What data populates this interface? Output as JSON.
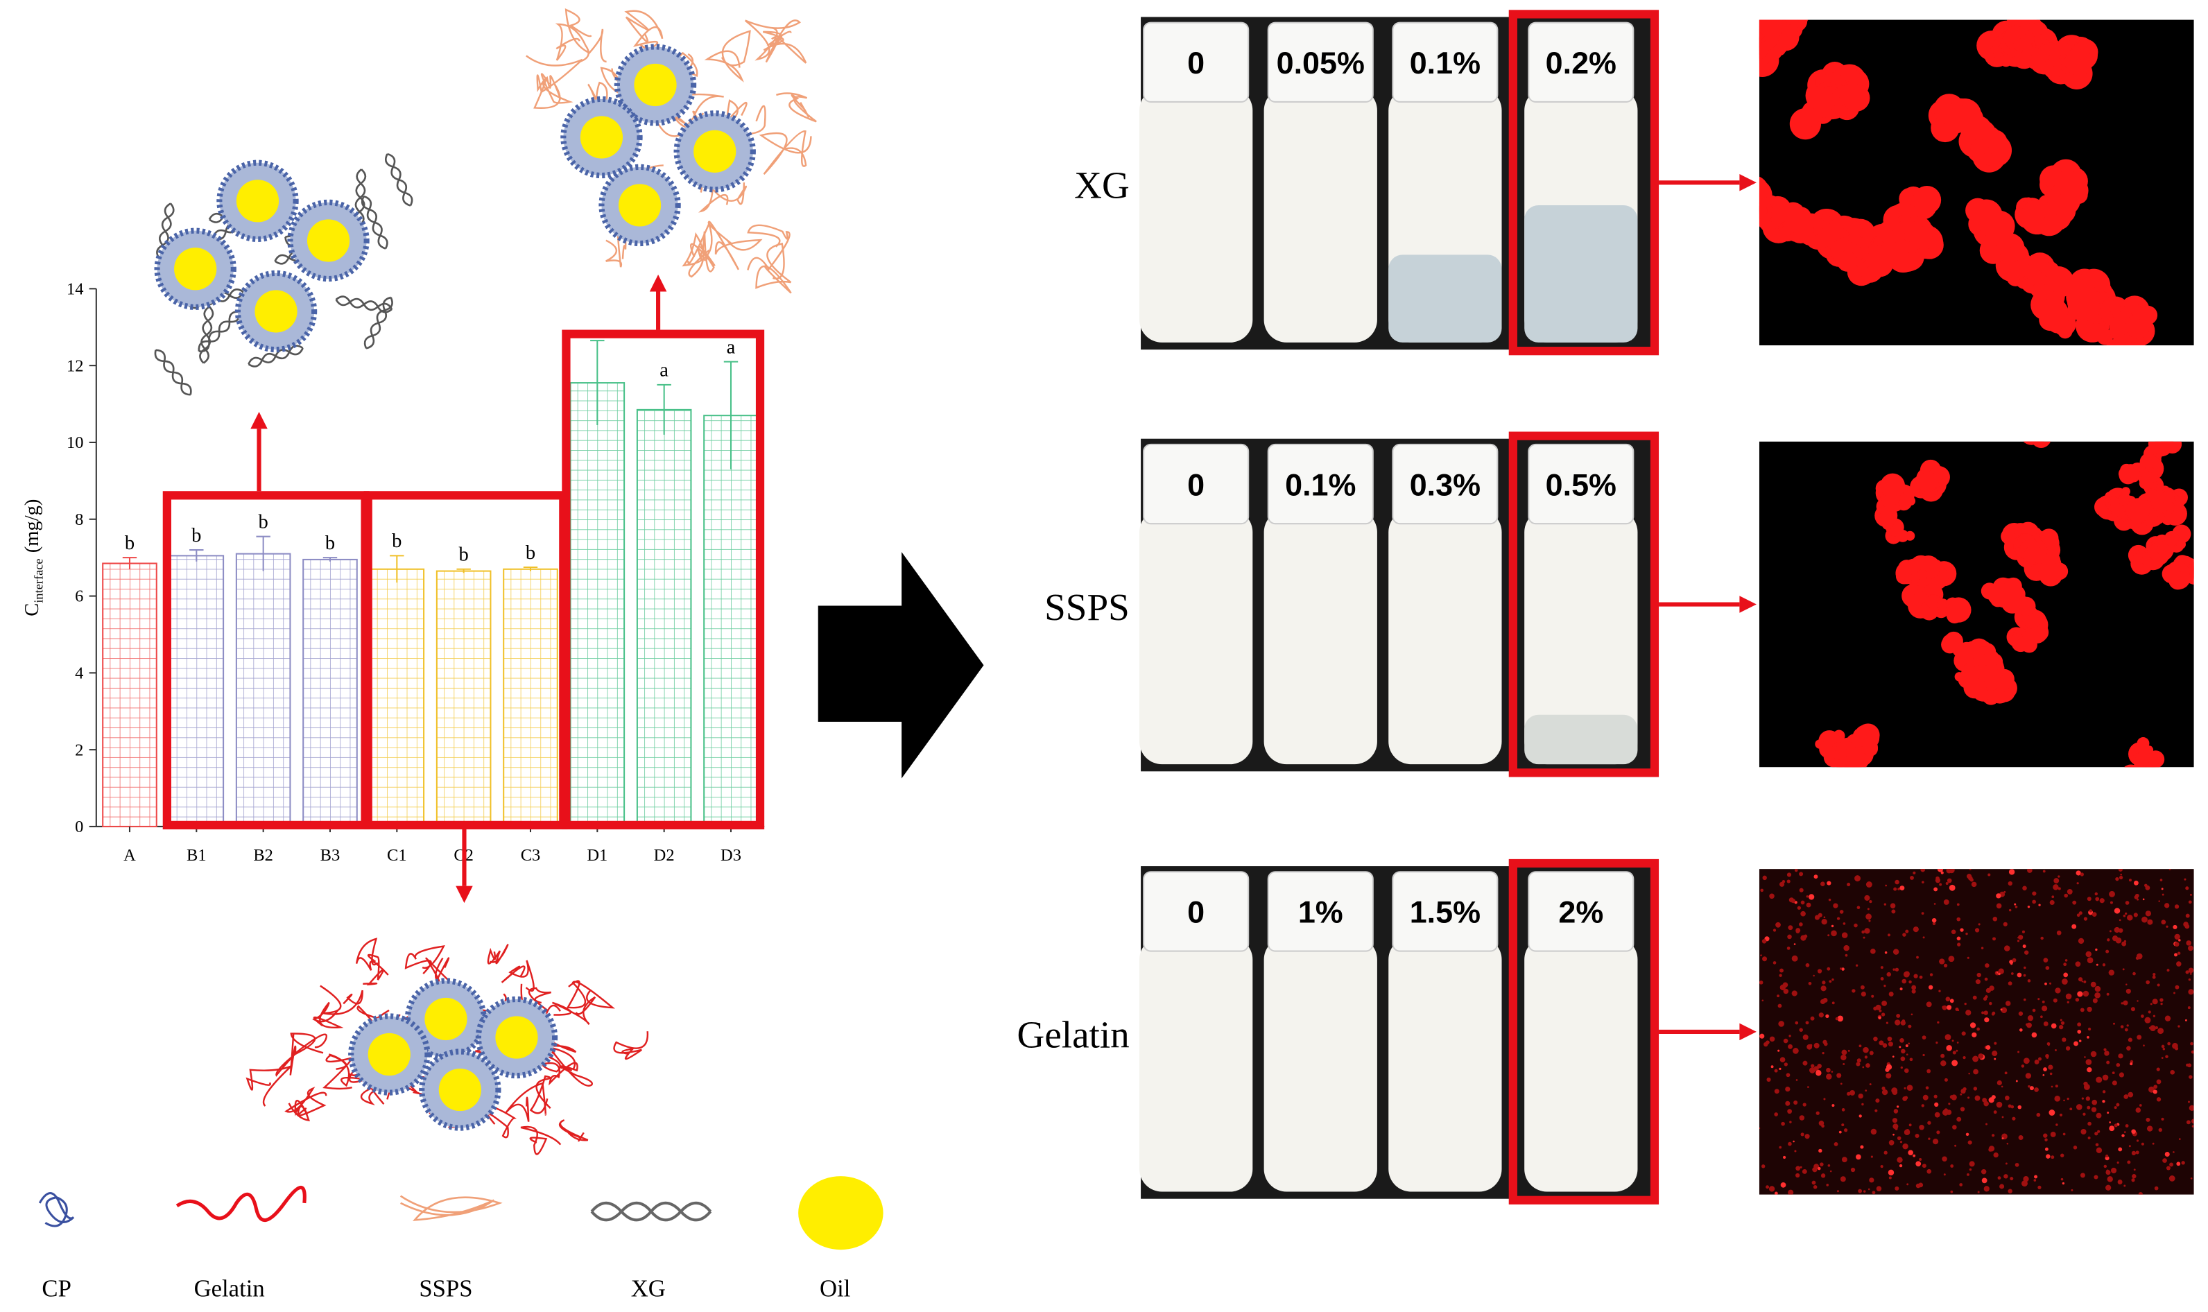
{
  "chart_data": {
    "type": "bar",
    "y_label": {
      "symbol": "C",
      "subscript": "interface",
      "unit": "(mg/g)"
    },
    "categories": [
      "A",
      "B1",
      "B2",
      "B3",
      "C1",
      "C2",
      "C3",
      "D1",
      "D2",
      "D3"
    ],
    "values": [
      6.85,
      7.05,
      7.1,
      6.95,
      6.7,
      6.65,
      6.7,
      11.55,
      10.85,
      10.7
    ],
    "errors": [
      0.15,
      0.15,
      0.45,
      0.05,
      0.35,
      0.05,
      0.05,
      1.1,
      0.65,
      1.4
    ],
    "significance": [
      "b",
      "b",
      "b",
      "b",
      "b",
      "b",
      "b",
      null,
      "a",
      "a"
    ],
    "colors": [
      "#ee4848",
      "#8c8cc4",
      "#8c8cc4",
      "#8c8cc4",
      "#f0c028",
      "#f0c028",
      "#f0c028",
      "#48c088",
      "#48c088",
      "#48c088"
    ],
    "ylim": [
      0,
      14
    ],
    "yticks": [
      0,
      2,
      4,
      6,
      8,
      10,
      12,
      14
    ]
  },
  "legend_items": [
    "CP",
    "Gelatin",
    "SSPS",
    "XG",
    "Oil"
  ],
  "rows": [
    {
      "label": "XG",
      "concentrations": [
        "0",
        "0.05%",
        "0.1%",
        "0.2%"
      ]
    },
    {
      "label": "SSPS",
      "concentrations": [
        "0",
        "0.1%",
        "0.3%",
        "0.5%"
      ]
    },
    {
      "label": "Gelatin",
      "concentrations": [
        "0",
        "1%",
        "1.5%",
        "2%"
      ]
    }
  ]
}
